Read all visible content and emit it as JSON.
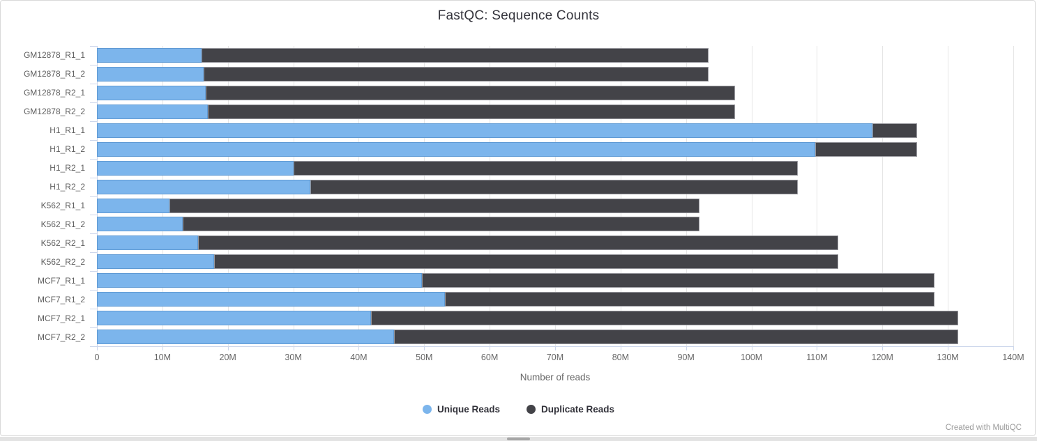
{
  "page": {
    "title": "FastQC: Sequence Counts",
    "footer_credit": "Created with MultiQC"
  },
  "legend": {
    "items": [
      {
        "label": "Unique Reads",
        "color": "#7cb5ec"
      },
      {
        "label": "Duplicate Reads",
        "color": "#434348"
      }
    ]
  },
  "chart_data": {
    "type": "bar",
    "orientation": "horizontal",
    "stacked": true,
    "title": "FastQC: Sequence Counts",
    "xlabel": "Number of reads",
    "ylabel": "",
    "xlim_millions": [
      0,
      140
    ],
    "x_tick_step_millions": 10,
    "x_tick_labels": [
      "0",
      "10M",
      "20M",
      "30M",
      "40M",
      "50M",
      "60M",
      "70M",
      "80M",
      "90M",
      "100M",
      "110M",
      "120M",
      "130M",
      "140M"
    ],
    "grid": "vertical",
    "legend_position": "bottom",
    "categories": [
      "GM12878_R1_1",
      "GM12878_R1_2",
      "GM12878_R2_1",
      "GM12878_R2_2",
      "H1_R1_1",
      "H1_R1_2",
      "H1_R2_1",
      "H1_R2_2",
      "K562_R1_1",
      "K562_R1_2",
      "K562_R2_1",
      "K562_R2_2",
      "MCF7_R1_1",
      "MCF7_R1_2",
      "MCF7_R2_1",
      "MCF7_R2_2"
    ],
    "series": [
      {
        "name": "Unique Reads",
        "color": "#7cb5ec",
        "values_millions": [
          16.0,
          16.3,
          16.6,
          16.9,
          118.5,
          109.7,
          30.0,
          32.6,
          11.1,
          13.1,
          15.5,
          17.9,
          49.6,
          53.2,
          41.9,
          45.4
        ]
      },
      {
        "name": "Duplicate Reads",
        "color": "#434348",
        "values_millions": [
          77.4,
          77.1,
          80.9,
          80.6,
          6.8,
          15.6,
          77.1,
          74.5,
          81.0,
          79.0,
          97.7,
          95.3,
          78.4,
          74.8,
          89.7,
          86.2
        ]
      }
    ],
    "totals_millions": [
      93.4,
      93.4,
      97.5,
      97.5,
      125.3,
      125.3,
      107.1,
      107.1,
      92.1,
      92.1,
      113.2,
      113.2,
      128.0,
      128.0,
      131.6,
      131.6
    ]
  },
  "colors": {
    "unique": "#7cb5ec",
    "duplicate": "#434348",
    "gridline": "#e6e6e6",
    "axis": "#ccd6eb",
    "title_text": "#34343c",
    "tick_text": "#666666",
    "credit_text": "#9b9b9b"
  }
}
